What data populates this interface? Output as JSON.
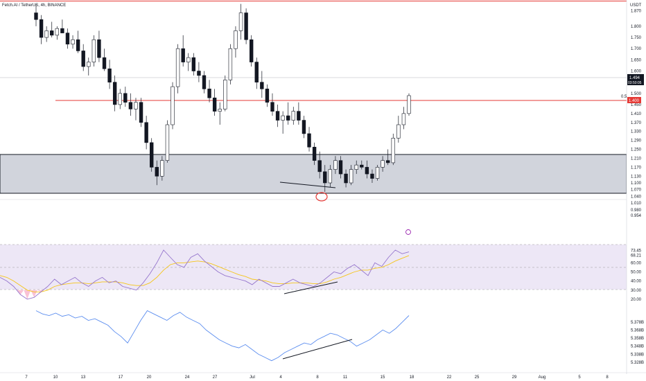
{
  "header": {
    "symbol_label": "Fetch.AI / TetherUS, 4h, BINANCE",
    "currency": "USDT"
  },
  "colors": {
    "up_body": "#ffffff",
    "down_body": "#131722",
    "candle_outline": "#131722",
    "resistance_line": "#e53935",
    "support_zone_fill": "#d1d4dc",
    "rsi_band_fill": "#ede7f6",
    "rsi_line": "#9575cd",
    "rsi_ma_line": "#f5c518",
    "rsi_oversold_fill": "#f8bbd0",
    "obv_line": "#5b8def",
    "trendline": "#131722",
    "highlight_circle": "#e53935"
  },
  "chart_data": [
    {
      "type": "candlestick",
      "title": "Fetch.AI / TetherUS, 4h, BINANCE",
      "y_axis_ticks": [
        "1.870",
        "1.800",
        "1.750",
        "1.700",
        "1.650",
        "1.600",
        "1.550",
        "1.500",
        "1.450",
        "1.410",
        "1.370",
        "1.330",
        "1.290",
        "1.250",
        "1.210",
        "1.170",
        "1.130",
        "1.100",
        "1.070",
        "1.040",
        "1.010",
        "0.980",
        "0.954"
      ],
      "x_axis_ticks": [
        "7",
        "10",
        "13",
        "17",
        "20",
        "24",
        "27",
        "Jul",
        "4",
        "8",
        "11",
        "15",
        "18",
        "22",
        "25",
        "29",
        "Aug",
        "5",
        "8"
      ],
      "last_price_label": "1.494",
      "countdown_label": "03:50:05",
      "resistance_price_label": "1.400",
      "fib_level_label": "0.5",
      "support_zone": {
        "low": 1.07,
        "high": 1.197
      },
      "resistance_level": 1.4,
      "ohlc": [
        [
          1.86,
          1.9,
          1.8,
          1.83
        ],
        [
          1.83,
          1.85,
          1.72,
          1.75
        ],
        [
          1.75,
          1.8,
          1.73,
          1.78
        ],
        [
          1.78,
          1.82,
          1.75,
          1.76
        ],
        [
          1.76,
          1.8,
          1.74,
          1.79
        ],
        [
          1.79,
          1.83,
          1.77,
          1.77
        ],
        [
          1.77,
          1.79,
          1.7,
          1.72
        ],
        [
          1.72,
          1.76,
          1.7,
          1.74
        ],
        [
          1.74,
          1.78,
          1.68,
          1.69
        ],
        [
          1.69,
          1.72,
          1.6,
          1.62
        ],
        [
          1.62,
          1.66,
          1.58,
          1.64
        ],
        [
          1.64,
          1.76,
          1.62,
          1.74
        ],
        [
          1.74,
          1.78,
          1.64,
          1.66
        ],
        [
          1.66,
          1.7,
          1.6,
          1.61
        ],
        [
          1.61,
          1.65,
          1.52,
          1.55
        ],
        [
          1.55,
          1.58,
          1.42,
          1.45
        ],
        [
          1.45,
          1.52,
          1.43,
          1.5
        ],
        [
          1.5,
          1.53,
          1.44,
          1.46
        ],
        [
          1.46,
          1.5,
          1.4,
          1.43
        ],
        [
          1.43,
          1.48,
          1.38,
          1.46
        ],
        [
          1.46,
          1.48,
          1.35,
          1.37
        ],
        [
          1.37,
          1.4,
          1.25,
          1.28
        ],
        [
          1.28,
          1.3,
          1.15,
          1.17
        ],
        [
          1.17,
          1.2,
          1.09,
          1.13
        ],
        [
          1.13,
          1.22,
          1.11,
          1.2
        ],
        [
          1.2,
          1.38,
          1.19,
          1.36
        ],
        [
          1.36,
          1.55,
          1.34,
          1.53
        ],
        [
          1.53,
          1.72,
          1.5,
          1.7
        ],
        [
          1.7,
          1.76,
          1.62,
          1.64
        ],
        [
          1.64,
          1.68,
          1.6,
          1.66
        ],
        [
          1.66,
          1.68,
          1.58,
          1.6
        ],
        [
          1.6,
          1.64,
          1.55,
          1.58
        ],
        [
          1.58,
          1.6,
          1.5,
          1.52
        ],
        [
          1.52,
          1.56,
          1.46,
          1.48
        ],
        [
          1.48,
          1.52,
          1.4,
          1.42
        ],
        [
          1.42,
          1.46,
          1.36,
          1.43
        ],
        [
          1.43,
          1.58,
          1.42,
          1.56
        ],
        [
          1.56,
          1.72,
          1.54,
          1.7
        ],
        [
          1.7,
          1.8,
          1.66,
          1.78
        ],
        [
          1.78,
          1.9,
          1.74,
          1.86
        ],
        [
          1.86,
          1.88,
          1.72,
          1.74
        ],
        [
          1.74,
          1.76,
          1.62,
          1.64
        ],
        [
          1.64,
          1.66,
          1.52,
          1.55
        ],
        [
          1.55,
          1.6,
          1.48,
          1.52
        ],
        [
          1.52,
          1.54,
          1.44,
          1.46
        ],
        [
          1.46,
          1.5,
          1.4,
          1.42
        ],
        [
          1.42,
          1.45,
          1.35,
          1.38
        ],
        [
          1.38,
          1.42,
          1.32,
          1.4
        ],
        [
          1.4,
          1.46,
          1.36,
          1.38
        ],
        [
          1.38,
          1.44,
          1.36,
          1.42
        ],
        [
          1.42,
          1.46,
          1.36,
          1.38
        ],
        [
          1.38,
          1.4,
          1.3,
          1.32
        ],
        [
          1.32,
          1.35,
          1.24,
          1.26
        ],
        [
          1.26,
          1.28,
          1.18,
          1.2
        ],
        [
          1.2,
          1.24,
          1.12,
          1.15
        ],
        [
          1.15,
          1.18,
          1.06,
          1.1
        ],
        [
          1.1,
          1.18,
          1.08,
          1.16
        ],
        [
          1.16,
          1.22,
          1.14,
          1.2
        ],
        [
          1.2,
          1.22,
          1.12,
          1.14
        ],
        [
          1.14,
          1.16,
          1.08,
          1.1
        ],
        [
          1.1,
          1.18,
          1.09,
          1.16
        ],
        [
          1.16,
          1.2,
          1.14,
          1.18
        ],
        [
          1.18,
          1.2,
          1.16,
          1.17
        ],
        [
          1.17,
          1.2,
          1.12,
          1.14
        ],
        [
          1.14,
          1.16,
          1.1,
          1.12
        ],
        [
          1.12,
          1.18,
          1.11,
          1.17
        ],
        [
          1.17,
          1.22,
          1.15,
          1.2
        ],
        [
          1.2,
          1.25,
          1.18,
          1.19
        ],
        [
          1.19,
          1.32,
          1.18,
          1.3
        ],
        [
          1.3,
          1.4,
          1.28,
          1.36
        ],
        [
          1.36,
          1.44,
          1.34,
          1.41
        ],
        [
          1.41,
          1.5,
          1.4,
          1.49
        ]
      ]
    },
    {
      "type": "line",
      "title": "RSI",
      "y_axis_ticks": [
        "73.45",
        "68.21",
        "60.00",
        "50.00",
        "40.00",
        "30.00",
        "20.00"
      ],
      "band": [
        30,
        70
      ],
      "series": [
        {
          "name": "RSI",
          "values": [
            44,
            40,
            34,
            25,
            20,
            22,
            28,
            34,
            42,
            36,
            40,
            44,
            38,
            34,
            40,
            44,
            38,
            40,
            34,
            32,
            30,
            38,
            48,
            60,
            74,
            66,
            58,
            55,
            66,
            70,
            62,
            56,
            50,
            46,
            44,
            42,
            40,
            36,
            42,
            38,
            34,
            34,
            38,
            42,
            38,
            36,
            34,
            38,
            44,
            50,
            48,
            54,
            58,
            52,
            46,
            60,
            56,
            66,
            74,
            70,
            72
          ]
        },
        {
          "name": "RSI-based MA",
          "values": [
            46,
            44,
            40,
            35,
            30,
            28,
            28,
            30,
            34,
            36,
            37,
            38,
            38,
            37,
            38,
            39,
            39,
            39,
            38,
            36,
            35,
            35,
            38,
            44,
            52,
            58,
            60,
            60,
            61,
            62,
            61,
            59,
            56,
            53,
            50,
            47,
            45,
            42,
            41,
            40,
            38,
            37,
            37,
            38,
            38,
            38,
            37,
            37,
            39,
            42,
            44,
            47,
            50,
            52,
            52,
            54,
            55,
            58,
            62,
            65,
            68
          ]
        }
      ]
    },
    {
      "type": "line",
      "title": "OBV",
      "y_axis_ticks": [
        "5.378B",
        "5.368B",
        "5.358B",
        "5.348B",
        "5.338B",
        "5.328B"
      ],
      "series": [
        {
          "name": "OBV",
          "values": [
            5.392,
            5.388,
            5.386,
            5.389,
            5.385,
            5.387,
            5.383,
            5.385,
            5.38,
            5.382,
            5.378,
            5.374,
            5.366,
            5.36,
            5.352,
            5.366,
            5.38,
            5.392,
            5.388,
            5.384,
            5.38,
            5.386,
            5.39,
            5.384,
            5.38,
            5.376,
            5.368,
            5.362,
            5.356,
            5.352,
            5.348,
            5.346,
            5.35,
            5.344,
            5.338,
            5.334,
            5.33,
            5.334,
            5.34,
            5.344,
            5.348,
            5.352,
            5.35,
            5.356,
            5.36,
            5.364,
            5.362,
            5.358,
            5.354,
            5.348,
            5.352,
            5.356,
            5.362,
            5.368,
            5.364,
            5.37,
            5.378,
            5.386
          ]
        }
      ]
    }
  ]
}
